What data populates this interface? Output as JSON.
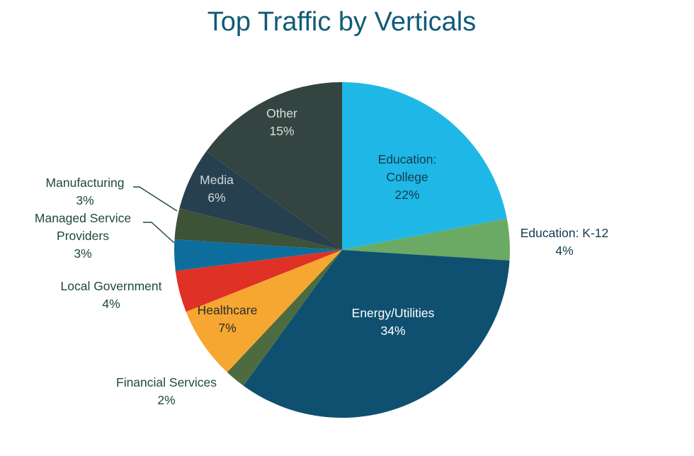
{
  "chart_data": {
    "type": "pie",
    "title": "Top Traffic by Verticals",
    "slices": [
      {
        "name": "Education: College",
        "label_lines": [
          "Education:",
          "College"
        ],
        "pct_label": "22%",
        "value": 22,
        "color": "#1fb8e6"
      },
      {
        "name": "Education: K-12",
        "label_lines": [
          "Education: K-12"
        ],
        "pct_label": "4%",
        "value": 4,
        "color": "#6aaa64"
      },
      {
        "name": "Energy/Utilities",
        "label_lines": [
          "Energy/Utilities"
        ],
        "pct_label": "34%",
        "value": 34,
        "color": "#0f5070"
      },
      {
        "name": "Financial Services",
        "label_lines": [
          "Financial Services"
        ],
        "pct_label": "2%",
        "value": 2,
        "color": "#4d6b3f"
      },
      {
        "name": "Healthcare",
        "label_lines": [
          "Healthcare"
        ],
        "pct_label": "7%",
        "value": 7,
        "color": "#f5a731"
      },
      {
        "name": "Local Government",
        "label_lines": [
          "Local Government"
        ],
        "pct_label": "4%",
        "value": 4,
        "color": "#e03126"
      },
      {
        "name": "Managed Service Providers",
        "label_lines": [
          "Managed Service",
          "Providers"
        ],
        "pct_label": "3%",
        "value": 3,
        "color": "#0d6e9e"
      },
      {
        "name": "Manufacturing",
        "label_lines": [
          "Manufacturing"
        ],
        "pct_label": "3%",
        "value": 3,
        "color": "#3d5237"
      },
      {
        "name": "Media",
        "label_lines": [
          "Media"
        ],
        "pct_label": "6%",
        "value": 6,
        "color": "#27404f"
      },
      {
        "name": "Other",
        "label_lines": [
          "Other"
        ],
        "pct_label": "15%",
        "value": 15,
        "color": "#344440"
      }
    ]
  }
}
